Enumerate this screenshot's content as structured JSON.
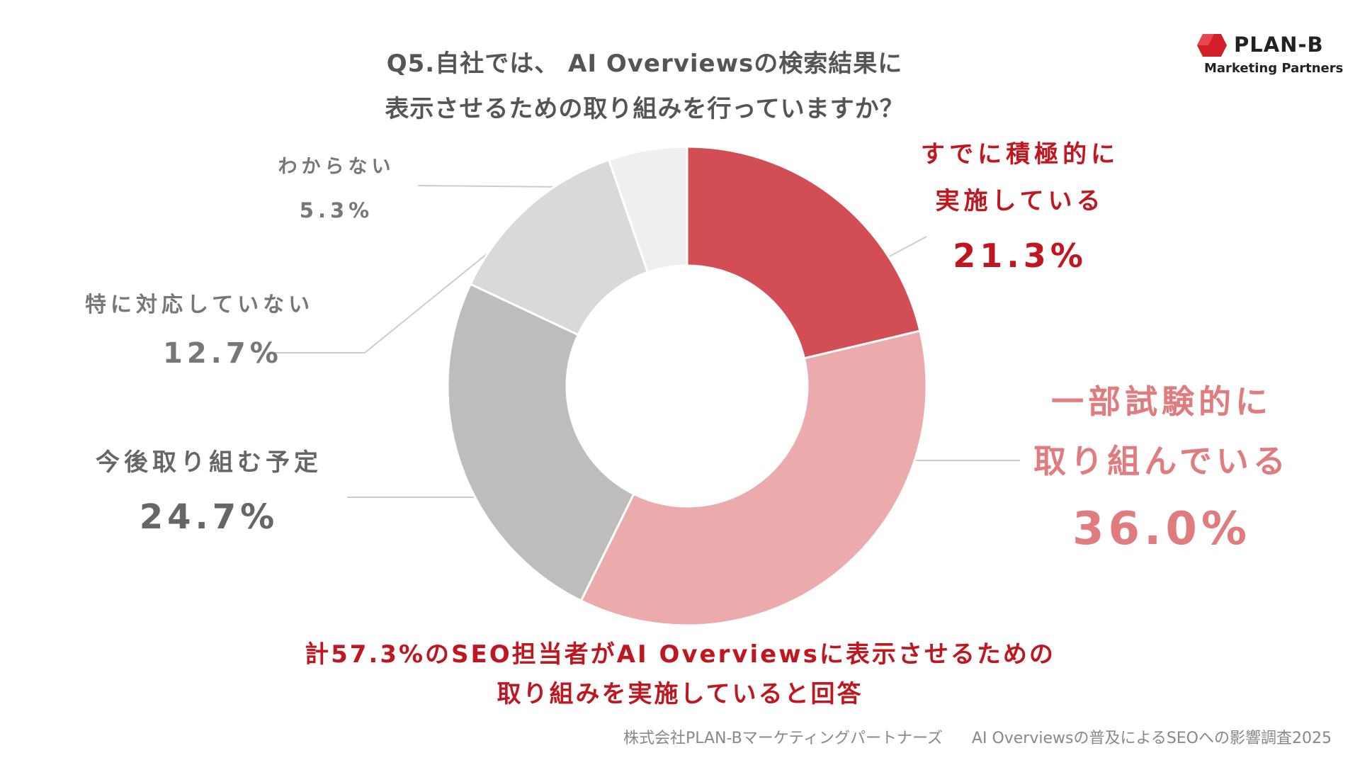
{
  "title": {
    "line1": "Q5.自社では、 AI Overviewsの検索結果に",
    "line2": "表示させるための取り組みを行っていますか？"
  },
  "logo": {
    "name": "PLAN-B",
    "subtitle": "Marketing Partners",
    "color": "#d01f27"
  },
  "chart_data": {
    "type": "pie",
    "variant": "donut",
    "start_angle_deg": 0,
    "direction": "clockwise",
    "slices": [
      {
        "name": "すでに積極的に実施している",
        "value": 21.3,
        "color": "#d34d55"
      },
      {
        "name": "一部試験的に取り組んでいる",
        "value": 36.0,
        "color": "#ebaaab"
      },
      {
        "name": "今後取り組む予定",
        "value": 24.7,
        "color": "#bdbdbd"
      },
      {
        "name": "特に対応していない",
        "value": 12.7,
        "color": "#d9d9d9"
      },
      {
        "name": "わからない",
        "value": 5.3,
        "color": "#efefef"
      }
    ]
  },
  "labels": {
    "active": {
      "line1": "すでに積極的に",
      "line2": "実施している",
      "value": "21.3%"
    },
    "partial": {
      "line1": "一部試験的に",
      "line2": "取り組んでいる",
      "value": "36.0%"
    },
    "future": {
      "line1": "今後取り組む予定",
      "value": "24.7%"
    },
    "none": {
      "line1": "特に対応していない",
      "value": "12.7%"
    },
    "unknown": {
      "line1": "わからない",
      "value": "5.3%"
    }
  },
  "conclusion": {
    "line1": "計57.3%のSEO担当者がAI Overviewsに表示させるための",
    "line2": "取り組みを実施していると回答"
  },
  "footer": {
    "company": "株式会社PLAN-Bマーケティングパートナーズ",
    "survey": "AI Overviewsの普及によるSEOへの影響調査2025"
  },
  "colors": {
    "accent_red": "#c0161f",
    "accent_pink": "#e07b7e",
    "gray_text": "#666666",
    "leader_line": "#cccccc"
  }
}
